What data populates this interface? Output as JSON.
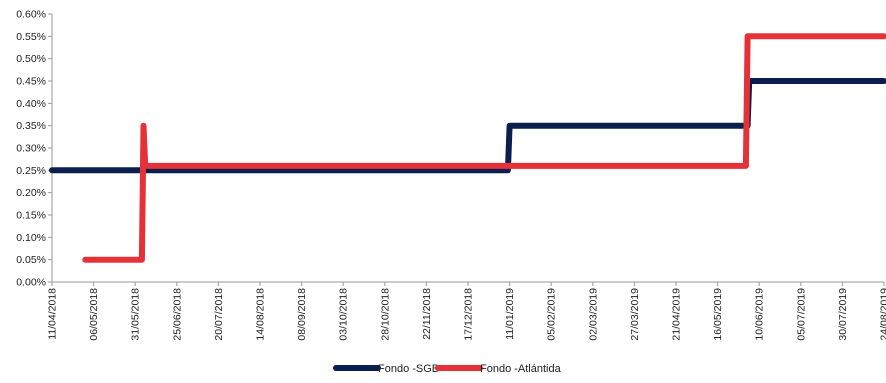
{
  "chart_data": {
    "type": "line",
    "line_shape": "step",
    "title": "",
    "xlabel": "",
    "ylabel": "",
    "ylim": [
      0,
      0.6
    ],
    "y_tick_values": [
      0,
      0.05,
      0.1,
      0.15,
      0.2,
      0.25,
      0.3,
      0.35,
      0.4,
      0.45,
      0.5,
      0.55,
      0.6
    ],
    "y_tick_labels": [
      "0.00%",
      "0.05%",
      "0.10%",
      "0.15%",
      "0.20%",
      "0.25%",
      "0.30%",
      "0.35%",
      "0.40%",
      "0.45%",
      "0.50%",
      "0.55%",
      "0.60%"
    ],
    "x_tick_labels": [
      "11/04/2018",
      "06/05/2018",
      "31/05/2018",
      "25/06/2018",
      "20/07/2018",
      "14/08/2018",
      "08/09/2018",
      "03/10/2018",
      "28/10/2018",
      "22/11/2018",
      "17/12/2018",
      "11/01/2019",
      "05/02/2019",
      "02/03/2019",
      "27/03/2019",
      "21/04/2019",
      "16/05/2019",
      "10/06/2019",
      "05/07/2019",
      "30/07/2019",
      "24/08/2019"
    ],
    "xlim": [
      "2018-04-11",
      "2019-08-24"
    ],
    "grid": false,
    "legend_position": "bottom-center",
    "series": [
      {
        "name": "Fondo -SGB",
        "color": "#0b1f4f",
        "points": [
          {
            "x": "2018-04-11",
            "y": 0.25
          },
          {
            "x": "2019-01-10",
            "y": 0.25
          },
          {
            "x": "2019-01-11",
            "y": 0.35
          },
          {
            "x": "2019-06-03",
            "y": 0.35
          },
          {
            "x": "2019-06-04",
            "y": 0.45
          },
          {
            "x": "2019-08-24",
            "y": 0.45
          }
        ]
      },
      {
        "name": "Fondo -Atlántida",
        "color": "#e53238",
        "points": [
          {
            "x": "2018-05-01",
            "y": 0.05
          },
          {
            "x": "2018-06-04",
            "y": 0.05
          },
          {
            "x": "2018-06-05",
            "y": 0.35
          },
          {
            "x": "2018-06-06",
            "y": 0.26
          },
          {
            "x": "2019-06-02",
            "y": 0.26
          },
          {
            "x": "2019-06-03",
            "y": 0.55
          },
          {
            "x": "2019-08-24",
            "y": 0.55
          }
        ]
      }
    ]
  }
}
